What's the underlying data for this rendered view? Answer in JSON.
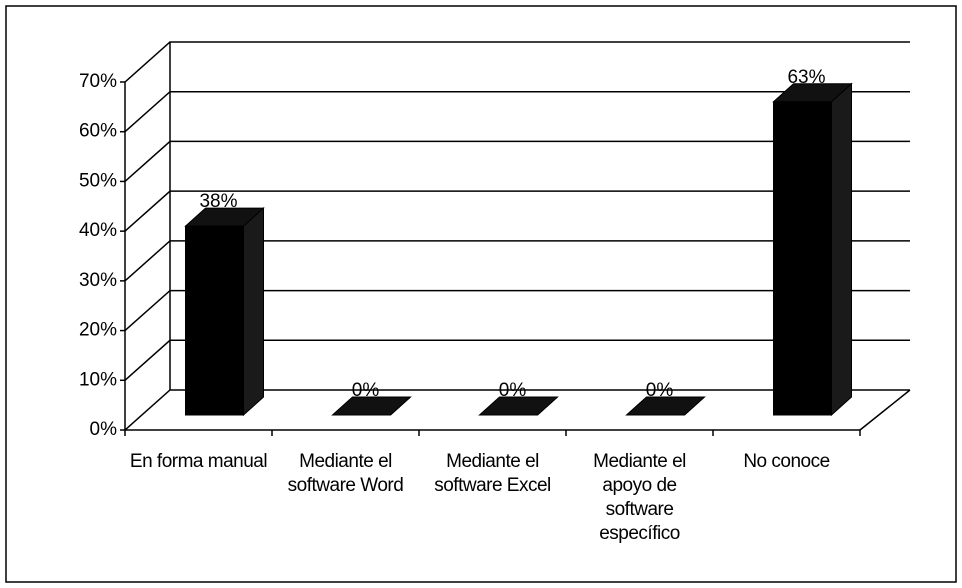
{
  "chart_data": {
    "type": "bar3d",
    "categories": [
      "En forma manual",
      "Mediante el software Word",
      "Mediante el software Excel",
      "Mediante el apoyo de software específico",
      "No conoce"
    ],
    "values": [
      38,
      0,
      0,
      0,
      63
    ],
    "value_labels": [
      "38%",
      "0%",
      "0%",
      "0%",
      "63%"
    ],
    "color": "#000000",
    "ylim": [
      0,
      70
    ],
    "yticks": [
      {
        "value": 0,
        "label": "0%"
      },
      {
        "value": 10,
        "label": "10%"
      },
      {
        "value": 20,
        "label": "20%"
      },
      {
        "value": 30,
        "label": "30%"
      },
      {
        "value": 40,
        "label": "40%"
      },
      {
        "value": 50,
        "label": "50%"
      },
      {
        "value": 60,
        "label": "60%"
      },
      {
        "value": 70,
        "label": "70%"
      }
    ],
    "grid": true
  }
}
